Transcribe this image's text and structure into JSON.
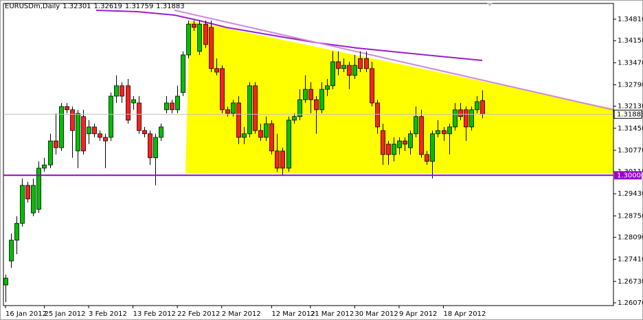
{
  "chart_data": {
    "type": "candlestick",
    "title": "EURUSDm,Daily",
    "categories": [
      "16 Jan 2012",
      null,
      null,
      null,
      null,
      null,
      null,
      "25 Jan 2012",
      null,
      null,
      null,
      null,
      null,
      null,
      null,
      "3 Feb 2012",
      null,
      null,
      null,
      null,
      null,
      null,
      null,
      "13 Feb 2012",
      null,
      null,
      null,
      null,
      null,
      null,
      null,
      "22 Feb 2012",
      null,
      null,
      null,
      null,
      null,
      null,
      null,
      "2 Mar 2012",
      null,
      null,
      null,
      null,
      null,
      null,
      null,
      null,
      "12 Mar 2012",
      null,
      null,
      null,
      null,
      null,
      null,
      "21 Mar 2012",
      null,
      null,
      null,
      null,
      null,
      null,
      null,
      "30 Mar 2012",
      null,
      null,
      null,
      null,
      null,
      null,
      null,
      "9 Apr 2012",
      null,
      null,
      null,
      null,
      null,
      null,
      null,
      "18 Apr 2012",
      null,
      null,
      null,
      null,
      null,
      null,
      null
    ],
    "open": [
      1.2662,
      1.2736,
      1.28,
      1.2852,
      1.2969,
      1.2884,
      1.2895,
      1.3022,
      1.3032,
      1.3106,
      1.3085,
      1.3212,
      1.3202,
      1.3075,
      1.3181,
      1.3128,
      1.3149,
      1.3128,
      1.3117,
      1.3117,
      1.3244,
      1.3276,
      1.3276,
      1.3223,
      1.3223,
      1.3138,
      1.3128,
      1.3054,
      1.3117,
      1.3202,
      1.3223,
      1.3202,
      1.3255,
      1.3371,
      1.3466,
      1.3382,
      1.3466,
      1.3456,
      1.3329,
      1.3329,
      1.3202,
      1.3191,
      1.3223,
      1.3117,
      1.3128,
      1.3276,
      1.3138,
      1.3117,
      1.3159,
      1.3075,
      1.3075,
      1.3022,
      1.317,
      1.3181,
      1.3233,
      1.3265,
      1.3233,
      1.3202,
      1.3265,
      1.3276,
      1.335,
      1.3329,
      1.3339,
      1.3308,
      1.336,
      1.336,
      1.3329,
      1.3223,
      1.3138,
      1.3096,
      1.3064,
      1.3085,
      1.3106,
      1.3085,
      1.3128,
      1.3181,
      1.3064,
      1.3043,
      1.3128,
      1.3138,
      1.3128,
      1.3149,
      1.3202,
      1.3202,
      1.3149,
      1.3202,
      1.32301
    ],
    "high": [
      1.2694,
      1.2821,
      1.2874,
      1.299,
      1.298,
      1.299,
      1.3043,
      1.3054,
      1.3128,
      1.3191,
      1.3223,
      1.3223,
      1.3212,
      1.3202,
      1.3202,
      1.317,
      1.3159,
      1.3138,
      1.3128,
      1.3255,
      1.3308,
      1.3287,
      1.3297,
      1.3244,
      1.3244,
      1.3149,
      1.3138,
      1.3128,
      1.3159,
      1.3244,
      1.3233,
      1.3276,
      1.3382,
      1.3477,
      1.3477,
      1.3477,
      1.3477,
      1.3477,
      1.336,
      1.3339,
      1.3212,
      1.3233,
      1.3244,
      1.3149,
      1.3287,
      1.3287,
      1.3159,
      1.3181,
      1.317,
      1.3128,
      1.3085,
      1.3181,
      1.3191,
      1.3265,
      1.3308,
      1.3287,
      1.3244,
      1.3287,
      1.3297,
      1.3382,
      1.3382,
      1.336,
      1.335,
      1.3371,
      1.3382,
      1.3382,
      1.335,
      1.3233,
      1.3159,
      1.3106,
      1.3117,
      1.3117,
      1.3117,
      1.3138,
      1.3212,
      1.3202,
      1.3075,
      1.3138,
      1.317,
      1.3149,
      1.3159,
      1.3223,
      1.3223,
      1.3212,
      1.3212,
      1.3244,
      1.32619
    ],
    "low": [
      1.2609,
      1.2715,
      1.2757,
      1.2842,
      1.2916,
      1.2874,
      1.2884,
      1.3011,
      1.3022,
      1.3064,
      1.3075,
      1.3191,
      1.3054,
      1.3022,
      1.3064,
      1.3096,
      1.3117,
      1.3106,
      1.3022,
      1.3106,
      1.3223,
      1.3223,
      1.3159,
      1.3202,
      1.3128,
      1.3117,
      1.3032,
      1.2969,
      1.3106,
      1.3191,
      1.3191,
      1.3191,
      1.3244,
      1.336,
      1.3445,
      1.3371,
      1.3392,
      1.3318,
      1.3308,
      1.3191,
      1.3181,
      1.3181,
      1.3096,
      1.3096,
      1.3117,
      1.3128,
      1.3106,
      1.3106,
      1.3064,
      1.3011,
      1.3001,
      1.3011,
      1.3159,
      1.317,
      1.3223,
      1.3191,
      1.3128,
      1.3191,
      1.3244,
      1.3265,
      1.3308,
      1.3318,
      1.3265,
      1.3297,
      1.3318,
      1.3318,
      1.3212,
      1.3128,
      1.3032,
      1.3032,
      1.3043,
      1.3064,
      1.3075,
      1.3064,
      1.3117,
      1.3054,
      1.3032,
      1.299,
      1.3117,
      1.3106,
      1.3064,
      1.3138,
      1.317,
      1.3106,
      1.3138,
      1.3191,
      1.31759
    ],
    "close": [
      1.2683,
      1.28,
      1.2852,
      1.2969,
      1.2927,
      1.2969,
      1.3022,
      1.3032,
      1.3106,
      1.3085,
      1.3212,
      1.3202,
      1.3138,
      1.3191,
      1.3075,
      1.3149,
      1.3128,
      1.3117,
      1.3106,
      1.3244,
      1.3276,
      1.3244,
      1.317,
      1.3233,
      1.3138,
      1.3128,
      1.3054,
      1.3117,
      1.3149,
      1.3223,
      1.3202,
      1.3244,
      1.3371,
      1.3466,
      1.3456,
      1.3466,
      1.3403,
      1.3329,
      1.3318,
      1.3202,
      1.3191,
      1.3223,
      1.3117,
      1.3128,
      1.3276,
      1.3138,
      1.3117,
      1.3159,
      1.3075,
      1.3022,
      1.3022,
      1.317,
      1.3181,
      1.3233,
      1.3265,
      1.3233,
      1.3202,
      1.3265,
      1.3276,
      1.335,
      1.3329,
      1.3339,
      1.3308,
      1.3339,
      1.3329,
      1.3329,
      1.3223,
      1.3149,
      1.3064,
      1.3064,
      1.3096,
      1.3106,
      1.3096,
      1.3128,
      1.3181,
      1.3064,
      1.3043,
      1.3128,
      1.3138,
      1.3128,
      1.3149,
      1.3202,
      1.3181,
      1.3149,
      1.3202,
      1.3227,
      1.31883
    ],
    "up_color": "#00c000",
    "down_color": "#ff2020",
    "ylim": [
      1.25985,
      1.35297
    ],
    "yticks": [
      {
        "value": 1.3481,
        "label": "1.34810"
      },
      {
        "value": 1.3415,
        "label": "1.34150"
      },
      {
        "value": 1.3347,
        "label": "1.33470"
      },
      {
        "value": 1.3279,
        "label": "1.32790"
      },
      {
        "value": 1.3213,
        "label": "1.32130"
      },
      {
        "value": 1.3145,
        "label": "1.31450"
      },
      {
        "value": 1.3077,
        "label": "1.30770"
      },
      {
        "value": 1.3011,
        "label": "1.30110"
      },
      {
        "value": 1.2943,
        "label": "1.29430"
      },
      {
        "value": 1.2875,
        "label": "1.28750"
      },
      {
        "value": 1.2809,
        "label": "1.28090"
      },
      {
        "value": 1.2741,
        "label": "1.27410"
      },
      {
        "value": 1.2673,
        "label": "1.26730"
      },
      {
        "value": 1.2607,
        "label": "1.26070"
      }
    ],
    "hline": {
      "value": 1.3,
      "label": "1.30000",
      "color": "#9900cc"
    },
    "grid": false
  }
}
